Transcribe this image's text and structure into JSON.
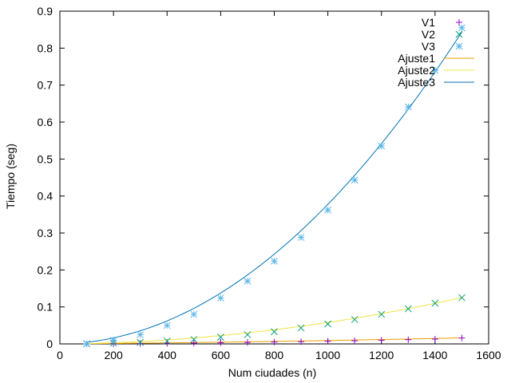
{
  "chart_data": {
    "type": "scatter",
    "title": "",
    "xlabel": "Num ciudades (n)",
    "ylabel": "Tiempo (seg)",
    "xlim": [
      0,
      1600
    ],
    "ylim": [
      0,
      0.9
    ],
    "xticks": [
      0,
      200,
      400,
      600,
      800,
      1000,
      1200,
      1400,
      1600
    ],
    "yticks": [
      0,
      0.1,
      0.2,
      0.3,
      0.4,
      0.5,
      0.6,
      0.7,
      0.8,
      0.9
    ],
    "grid": false,
    "legend_position": "top-right",
    "x": [
      100,
      200,
      300,
      400,
      500,
      600,
      700,
      800,
      900,
      1000,
      1100,
      1200,
      1300,
      1400,
      1500
    ],
    "series": [
      {
        "name": "V1",
        "marker": "plus",
        "color": "#9400d3",
        "values": [
          0.0001,
          0.0005,
          0.001,
          0.0016,
          0.0023,
          0.0031,
          0.004,
          0.005,
          0.006,
          0.0072,
          0.0085,
          0.0099,
          0.0114,
          0.013,
          0.016
        ]
      },
      {
        "name": "V2",
        "marker": "cross",
        "color": "#009e73",
        "values": [
          0.0005,
          0.002,
          0.004,
          0.008,
          0.012,
          0.018,
          0.025,
          0.033,
          0.043,
          0.054,
          0.066,
          0.08,
          0.095,
          0.11,
          0.125
        ]
      },
      {
        "name": "V3",
        "marker": "star",
        "color": "#56b4e9",
        "values": [
          0.0,
          0.01,
          0.025,
          0.05,
          0.08,
          0.124,
          0.17,
          0.224,
          0.288,
          0.362,
          0.443,
          0.535,
          0.641,
          0.74,
          0.855
        ]
      }
    ],
    "fits": [
      {
        "name": "Ajuste1",
        "color": "#e69f00",
        "coeffs": [
          0.0,
          5.6e-06,
          3.5e-09
        ]
      },
      {
        "name": "Ajuste2",
        "color": "#f0e442",
        "coeffs": [
          -0.0005,
          8e-06,
          5.05e-08
        ]
      },
      {
        "name": "Ajuste3",
        "color": "#0072b2",
        "coeffs": [
          0.0,
          7.5e-06,
          3.7e-07,
          0.0
        ]
      }
    ]
  }
}
